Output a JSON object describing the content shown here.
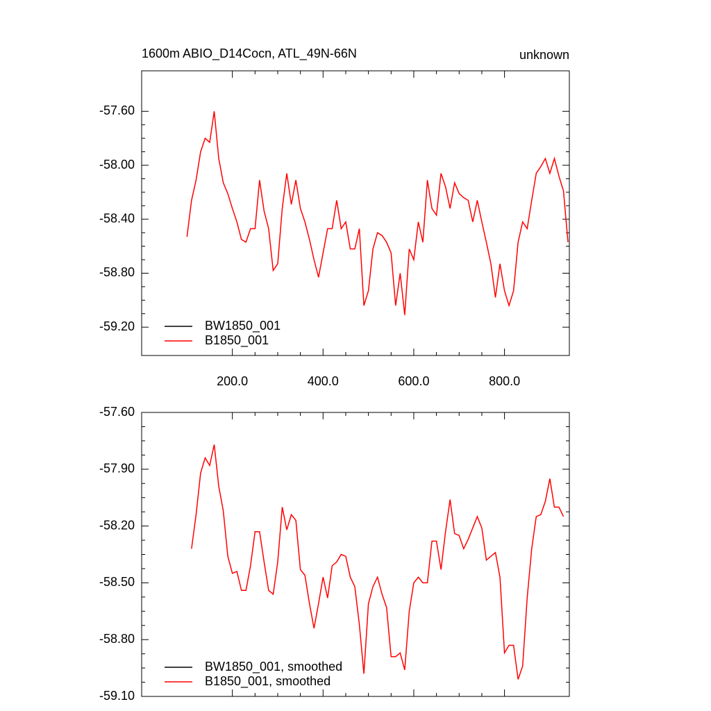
{
  "chart_data": [
    {
      "type": "line",
      "title": "1600m ABIO_D14Cocn, ATL_49N-66N",
      "subtitle": "unknown",
      "x": [
        100,
        110,
        120,
        130,
        140,
        150,
        160,
        170,
        180,
        190,
        200,
        210,
        220,
        230,
        240,
        250,
        260,
        270,
        280,
        290,
        300,
        310,
        320,
        330,
        340,
        350,
        360,
        370,
        380,
        390,
        400,
        410,
        420,
        430,
        440,
        450,
        460,
        470,
        480,
        490,
        500,
        510,
        520,
        530,
        540,
        550,
        560,
        570,
        580,
        590,
        600,
        610,
        620,
        630,
        640,
        650,
        660,
        670,
        680,
        690,
        700,
        710,
        720,
        730,
        740,
        750,
        760,
        770,
        780,
        790,
        800,
        810,
        820,
        830,
        840,
        850,
        860,
        870,
        880,
        890,
        900,
        910,
        920,
        930,
        940
      ],
      "series": [
        {
          "name": "BW1850_001",
          "color": "#000000",
          "values": [
            null,
            null,
            null,
            null,
            null,
            null,
            null,
            null,
            null,
            null,
            null,
            null,
            null,
            null,
            null,
            null,
            null,
            null,
            null,
            null,
            null,
            null,
            null,
            null,
            null,
            null,
            null,
            null,
            null,
            null,
            null,
            null,
            null,
            null,
            null,
            null,
            null,
            null,
            null,
            null,
            null,
            null,
            null,
            null,
            null,
            null,
            null,
            null,
            null,
            null,
            null,
            null,
            null,
            null,
            null,
            null,
            null,
            null,
            null,
            null,
            null,
            null,
            null,
            null,
            null,
            null,
            null,
            null,
            null,
            null,
            null,
            null,
            null,
            null,
            null,
            null,
            null,
            null,
            null,
            null,
            null,
            null,
            null,
            null,
            null
          ]
        },
        {
          "name": "B1850_001",
          "color": "#ff0000",
          "values": [
            -58.53,
            -58.26,
            -58.11,
            -57.9,
            -57.8,
            -57.83,
            -57.6,
            -57.95,
            -58.13,
            -58.21,
            -58.32,
            -58.42,
            -58.55,
            -58.57,
            -58.47,
            -58.47,
            -58.11,
            -58.34,
            -58.47,
            -58.78,
            -58.73,
            -58.32,
            -58.06,
            -58.29,
            -58.11,
            -58.32,
            -58.42,
            -58.55,
            -58.7,
            -58.83,
            -58.65,
            -58.47,
            -58.47,
            -58.26,
            -58.47,
            -58.42,
            -58.62,
            -58.62,
            -58.47,
            -59.04,
            -58.93,
            -58.62,
            -58.5,
            -58.52,
            -58.57,
            -58.65,
            -59.04,
            -58.8,
            -59.11,
            -58.62,
            -58.7,
            -58.42,
            -58.57,
            -58.11,
            -58.32,
            -58.37,
            -58.06,
            -58.16,
            -58.32,
            -58.13,
            -58.21,
            -58.24,
            -58.26,
            -58.42,
            -58.26,
            -58.42,
            -58.57,
            -58.73,
            -58.98,
            -58.73,
            -58.93,
            -59.04,
            -58.93,
            -58.57,
            -58.42,
            -58.47,
            -58.26,
            -58.06,
            -58.01,
            -57.95,
            -58.06,
            -57.95,
            -58.08,
            -58.19,
            -58.57
          ]
        }
      ],
      "xlim": [
        0,
        943
      ],
      "xticks": [
        {
          "value": 200,
          "label": "200.0"
        },
        {
          "value": 400,
          "label": "400.0"
        },
        {
          "value": 600,
          "label": "600.0"
        },
        {
          "value": 800,
          "label": "800.0"
        }
      ],
      "show_xtick_labels": true,
      "ylim": [
        -59.41,
        -57.3
      ],
      "yticks": [
        {
          "value": -57.6,
          "label": "-57.60"
        },
        {
          "value": -58.0,
          "label": "-58.00"
        },
        {
          "value": -58.4,
          "label": "-58.40"
        },
        {
          "value": -58.8,
          "label": "-58.80"
        },
        {
          "value": -59.2,
          "label": "-59.20"
        }
      ],
      "legend": "lower left"
    },
    {
      "type": "line",
      "x": [
        110,
        120,
        130,
        140,
        150,
        160,
        170,
        180,
        190,
        200,
        210,
        220,
        230,
        240,
        250,
        260,
        270,
        280,
        290,
        300,
        310,
        320,
        330,
        340,
        350,
        360,
        370,
        380,
        390,
        400,
        410,
        420,
        430,
        440,
        450,
        460,
        470,
        480,
        490,
        500,
        510,
        520,
        530,
        540,
        550,
        560,
        570,
        580,
        590,
        600,
        610,
        620,
        630,
        640,
        650,
        660,
        670,
        680,
        690,
        700,
        710,
        720,
        730,
        740,
        750,
        760,
        770,
        780,
        790,
        800,
        810,
        820,
        830,
        840,
        850,
        860,
        870,
        880,
        890,
        900,
        910,
        920,
        930
      ],
      "series": [
        {
          "name": "BW1850_001, smoothed",
          "color": "#000000",
          "values": [
            null,
            null,
            null,
            null,
            null,
            null,
            null,
            null,
            null,
            null,
            null,
            null,
            null,
            null,
            null,
            null,
            null,
            null,
            null,
            null,
            null,
            null,
            null,
            null,
            null,
            null,
            null,
            null,
            null,
            null,
            null,
            null,
            null,
            null,
            null,
            null,
            null,
            null,
            null,
            null,
            null,
            null,
            null,
            null,
            null,
            null,
            null,
            null,
            null,
            null,
            null,
            null,
            null,
            null,
            null,
            null,
            null,
            null,
            null,
            null,
            null,
            null,
            null,
            null,
            null,
            null,
            null,
            null,
            null,
            null,
            null,
            null,
            null,
            null,
            null,
            null,
            null,
            null,
            null,
            null,
            null,
            null,
            null
          ]
        },
        {
          "name": "B1850_001, smoothed",
          "color": "#ff0000",
          "values": [
            -58.32,
            -58.14,
            -57.92,
            -57.84,
            -57.88,
            -57.77,
            -57.99,
            -58.12,
            -58.36,
            -58.45,
            -58.44,
            -58.54,
            -58.54,
            -58.41,
            -58.23,
            -58.23,
            -58.39,
            -58.54,
            -58.56,
            -58.39,
            -58.1,
            -58.22,
            -58.14,
            -58.17,
            -58.43,
            -58.46,
            -58.61,
            -58.74,
            -58.61,
            -58.47,
            -58.58,
            -58.41,
            -58.39,
            -58.35,
            -58.36,
            -58.47,
            -58.52,
            -58.72,
            -58.98,
            -58.61,
            -58.52,
            -58.47,
            -58.56,
            -58.63,
            -58.89,
            -58.89,
            -58.87,
            -58.96,
            -58.65,
            -58.5,
            -58.47,
            -58.5,
            -58.5,
            -58.28,
            -58.28,
            -58.43,
            -58.23,
            -58.06,
            -58.24,
            -58.25,
            -58.32,
            -58.27,
            -58.21,
            -58.15,
            -58.21,
            -58.38,
            -58.36,
            -58.34,
            -58.47,
            -58.87,
            -58.83,
            -58.83,
            -59.01,
            -58.94,
            -58.58,
            -58.32,
            -58.15,
            -58.14,
            -58.07,
            -57.95,
            -58.1,
            -58.1,
            -58.15
          ]
        }
      ],
      "xlim": [
        0,
        943
      ],
      "xticks": [
        200,
        400,
        600,
        800
      ],
      "show_xtick_labels": false,
      "ylim": [
        -59.1,
        -57.6
      ],
      "yticks": [
        {
          "value": -57.6,
          "label": "-57.60"
        },
        {
          "value": -57.9,
          "label": "-57.90"
        },
        {
          "value": -58.2,
          "label": "-58.20"
        },
        {
          "value": -58.5,
          "label": "-58.50"
        },
        {
          "value": -58.8,
          "label": "-58.80"
        },
        {
          "value": -59.1,
          "label": "-59.10"
        }
      ],
      "legend": "lower left"
    }
  ]
}
